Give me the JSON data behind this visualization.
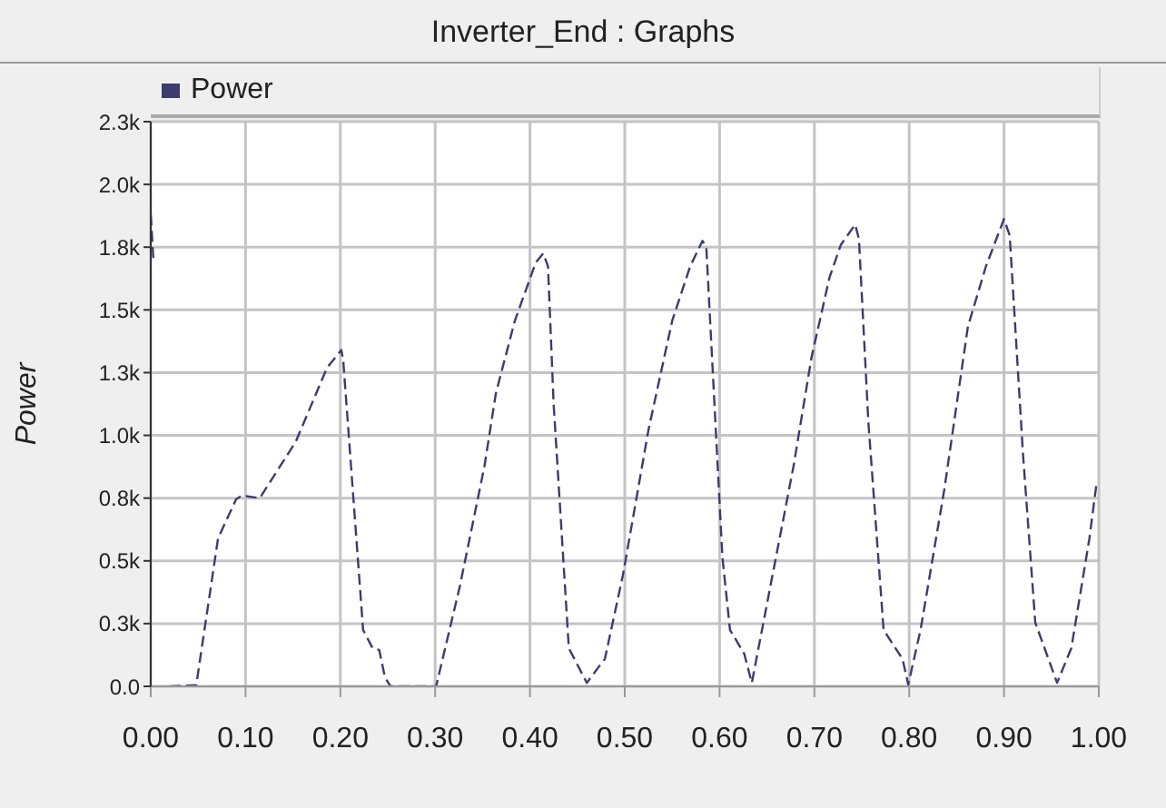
{
  "chart_data": {
    "type": "line",
    "title": "Inverter_End : Graphs",
    "ylabel": "Power",
    "x": [
      0,
      0.003,
      0.01,
      0.02,
      0.048,
      0.071,
      0.09,
      0.096,
      0.115,
      0.153,
      0.186,
      0.201,
      0.203,
      0.224,
      0.234,
      0.241,
      0.247,
      0.253,
      0.301,
      0.326,
      0.352,
      0.364,
      0.384,
      0.406,
      0.414,
      0.419,
      0.425,
      0.441,
      0.46,
      0.473,
      0.479,
      0.498,
      0.525,
      0.55,
      0.569,
      0.582,
      0.586,
      0.603,
      0.611,
      0.626,
      0.634,
      0.651,
      0.678,
      0.697,
      0.716,
      0.728,
      0.743,
      0.747,
      0.757,
      0.773,
      0.793,
      0.799,
      0.812,
      0.837,
      0.862,
      0.881,
      0.9,
      0.906,
      0.92,
      0.933,
      0.956,
      0.971,
      0.99,
      0.998
    ],
    "series": [
      {
        "name": "Power",
        "color": "#3c3c6e",
        "values": [
          1880,
          1690,
          null,
          0,
          5,
          590,
          745,
          760,
          750,
          975,
          1270,
          1340,
          1300,
          225,
          152,
          145,
          36,
          0,
          0,
          398,
          877,
          1167,
          1456,
          1688,
          1725,
          1674,
          1123,
          152,
          14,
          80,
          109,
          442,
          1022,
          1456,
          1674,
          1775,
          1750,
          514,
          225,
          130,
          14,
          348,
          877,
          1311,
          1630,
          1760,
          1840,
          1783,
          1050,
          225,
          109,
          7,
          225,
          783,
          1435,
          1674,
          1862,
          1797,
          928,
          254,
          14,
          152,
          587,
          819
        ]
      }
    ],
    "xlim": [
      0,
      1
    ],
    "xticks": [
      {
        "value": 0,
        "label": "0.00"
      },
      {
        "value": 0.1,
        "label": "0.10"
      },
      {
        "value": 0.2,
        "label": "0.20"
      },
      {
        "value": 0.3,
        "label": "0.30"
      },
      {
        "value": 0.4,
        "label": "0.40"
      },
      {
        "value": 0.5,
        "label": "0.50"
      },
      {
        "value": 0.6,
        "label": "0.60"
      },
      {
        "value": 0.7,
        "label": "0.70"
      },
      {
        "value": 0.8,
        "label": "0.80"
      },
      {
        "value": 0.9,
        "label": "0.90"
      },
      {
        "value": 1,
        "label": "1.00"
      }
    ],
    "ylim": [
      0,
      2250
    ],
    "yticks": [
      {
        "value": 0,
        "label": "0.0"
      },
      {
        "value": 250,
        "label": "0.3k"
      },
      {
        "value": 500,
        "label": "0.5k"
      },
      {
        "value": 750,
        "label": "0.8k"
      },
      {
        "value": 1000,
        "label": "1.0k"
      },
      {
        "value": 1250,
        "label": "1.3k"
      },
      {
        "value": 1500,
        "label": "1.5k"
      },
      {
        "value": 1750,
        "label": "1.8k"
      },
      {
        "value": 2000,
        "label": "2.0k"
      },
      {
        "value": 2250,
        "label": "2.3k"
      }
    ],
    "grid": true,
    "legend": "top left",
    "line_style": "dashed",
    "marker": "none"
  }
}
